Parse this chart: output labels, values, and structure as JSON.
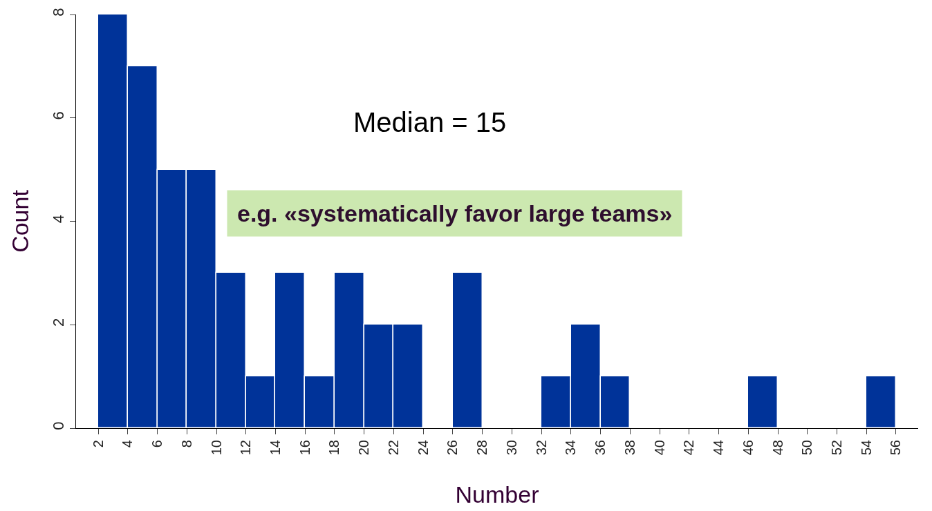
{
  "chart_data": {
    "type": "histogram",
    "xlabel": "Number",
    "ylabel": "Count",
    "color": "#003399",
    "bins": [
      2,
      4,
      6,
      8,
      10,
      12,
      14,
      16,
      18,
      20,
      22,
      24,
      26,
      28,
      30,
      32,
      34,
      36,
      38,
      40,
      42,
      44,
      46,
      48,
      50,
      52,
      54,
      56
    ],
    "values": [
      8,
      7,
      5,
      5,
      3,
      1,
      3,
      1,
      3,
      2,
      2,
      0,
      3,
      0,
      0,
      1,
      2,
      1,
      0,
      0,
      0,
      0,
      1,
      0,
      0,
      0,
      1
    ],
    "xlim": [
      0.5,
      57.5
    ],
    "xticks": [
      2,
      4,
      6,
      8,
      10,
      12,
      14,
      16,
      18,
      20,
      22,
      24,
      26,
      28,
      30,
      32,
      34,
      36,
      38,
      40,
      42,
      44,
      46,
      48,
      50,
      52,
      54,
      56
    ],
    "ylim": [
      0,
      8
    ],
    "yticks": [
      0,
      2,
      4,
      6,
      8
    ],
    "annotations": [
      "Median = 15",
      "e.g. «systematically favor large teams»"
    ]
  }
}
